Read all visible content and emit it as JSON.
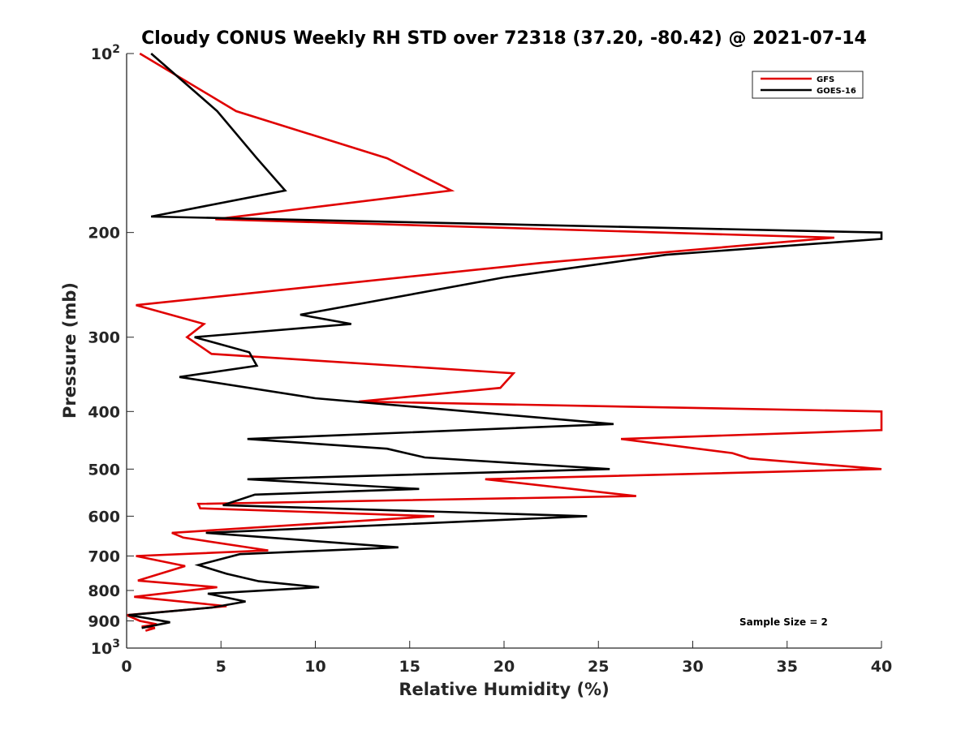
{
  "chart_data": {
    "type": "line",
    "title": "Cloudy CONUS Weekly RH STD over 72318 (37.20, -80.42) @ 2021-07-14",
    "xlabel": "Relative Humidity (%)",
    "ylabel": "Pressure (mb)",
    "xlim": [
      0,
      40
    ],
    "ylim": [
      100,
      1000
    ],
    "yscale": "log",
    "yreversed": true,
    "x_ticks": [
      0,
      5,
      10,
      15,
      20,
      25,
      30,
      35,
      40
    ],
    "x_tick_labels": [
      "0",
      "5",
      "10",
      "15",
      "20",
      "25",
      "30",
      "35",
      "40"
    ],
    "y_ticks": [
      100,
      200,
      300,
      400,
      500,
      600,
      700,
      800,
      900,
      1000
    ],
    "y_tick_labels": [
      {
        "base": "10",
        "exp": "2"
      },
      {
        "base": "200",
        "exp": ""
      },
      {
        "base": "300",
        "exp": ""
      },
      {
        "base": "400",
        "exp": ""
      },
      {
        "base": "500",
        "exp": ""
      },
      {
        "base": "600",
        "exp": ""
      },
      {
        "base": "700",
        "exp": ""
      },
      {
        "base": "800",
        "exp": ""
      },
      {
        "base": "900",
        "exp": ""
      },
      {
        "base": "10",
        "exp": "3"
      }
    ],
    "legend_position": "top-right",
    "annotation": "Sample Size = 2",
    "series": [
      {
        "name": "GFS",
        "color": "#e00000",
        "points": [
          [
            0.7,
            100
          ],
          [
            5.8,
            125
          ],
          [
            13.8,
            150
          ],
          [
            17.2,
            170
          ],
          [
            4.7,
            190
          ],
          [
            37.5,
            204
          ],
          [
            22.0,
            225
          ],
          [
            0.5,
            265
          ],
          [
            4.1,
            285
          ],
          [
            3.2,
            300
          ],
          [
            4.5,
            320
          ],
          [
            20.5,
            345
          ],
          [
            19.8,
            365
          ],
          [
            12.3,
            385
          ],
          [
            40.0,
            400
          ],
          [
            40.0,
            430
          ],
          [
            26.2,
            445
          ],
          [
            32.1,
            470
          ],
          [
            33.0,
            480
          ],
          [
            40.0,
            500
          ],
          [
            19.0,
            520
          ],
          [
            27.0,
            555
          ],
          [
            3.8,
            572
          ],
          [
            3.9,
            582
          ],
          [
            16.3,
            600
          ],
          [
            2.4,
            640
          ],
          [
            3.0,
            652
          ],
          [
            7.5,
            685
          ],
          [
            0.5,
            700
          ],
          [
            3.1,
            728
          ],
          [
            0.6,
            770
          ],
          [
            4.8,
            790
          ],
          [
            0.4,
            820
          ],
          [
            5.3,
            850
          ],
          [
            2.7,
            865
          ],
          [
            0.0,
            880
          ],
          [
            0.7,
            900
          ],
          [
            1.6,
            912
          ],
          [
            0.8,
            920
          ],
          [
            1.5,
            925
          ],
          [
            1.0,
            935
          ]
        ]
      },
      {
        "name": "GOES-16",
        "color": "#000000",
        "points": [
          [
            1.3,
            100
          ],
          [
            4.8,
            125
          ],
          [
            6.9,
            150
          ],
          [
            8.4,
            170
          ],
          [
            1.3,
            188
          ],
          [
            40.0,
            200
          ],
          [
            40.0,
            205
          ],
          [
            28.6,
            218
          ],
          [
            20.0,
            238
          ],
          [
            9.2,
            275
          ],
          [
            11.9,
            285
          ],
          [
            3.6,
            300
          ],
          [
            6.5,
            318
          ],
          [
            6.9,
            335
          ],
          [
            2.8,
            350
          ],
          [
            10.0,
            380
          ],
          [
            25.8,
            420
          ],
          [
            6.4,
            445
          ],
          [
            13.8,
            462
          ],
          [
            15.8,
            478
          ],
          [
            25.6,
            500
          ],
          [
            6.4,
            520
          ],
          [
            15.5,
            540
          ],
          [
            6.8,
            552
          ],
          [
            5.1,
            575
          ],
          [
            24.4,
            600
          ],
          [
            4.2,
            640
          ],
          [
            14.4,
            677
          ],
          [
            6.0,
            695
          ],
          [
            3.8,
            725
          ],
          [
            5.3,
            750
          ],
          [
            7.0,
            772
          ],
          [
            10.2,
            790
          ],
          [
            4.3,
            810
          ],
          [
            6.3,
            835
          ],
          [
            4.5,
            855
          ],
          [
            0.1,
            880
          ],
          [
            1.2,
            892
          ],
          [
            2.3,
            905
          ],
          [
            0.8,
            925
          ]
        ]
      }
    ]
  }
}
